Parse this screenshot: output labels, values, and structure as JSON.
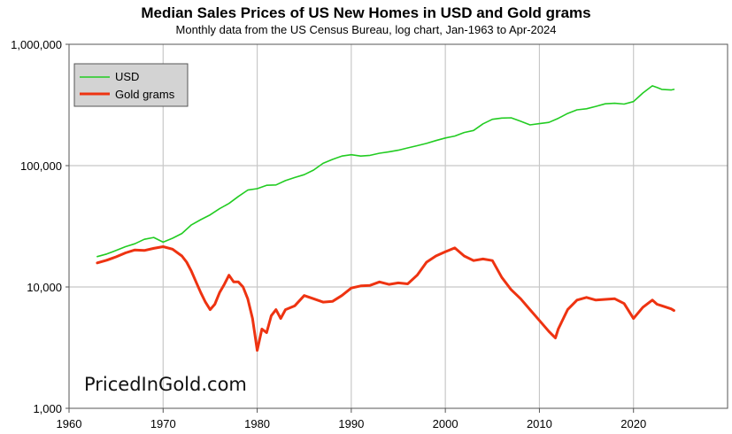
{
  "chart_data": {
    "type": "line",
    "title": "Median Sales Prices of US New Homes in USD and Gold grams",
    "subtitle": "Monthly data from the US Census Bureau, log chart, Jan-1963 to Apr-2024",
    "xlim": [
      1960,
      2030
    ],
    "ylim": [
      1000,
      1000000
    ],
    "yscale": "log",
    "grid": true,
    "legend_position": "top-left",
    "x_ticks": [
      "1960",
      "1970",
      "1980",
      "1990",
      "2000",
      "2010",
      "2020"
    ],
    "y_ticks": [
      "1,000",
      "10,000",
      "100,000",
      "1,000,000"
    ],
    "watermark": "PricedInGold.com",
    "series": [
      {
        "name": "USD",
        "color": "#22cc22",
        "x": [
          1963,
          1964,
          1965,
          1966,
          1967,
          1968,
          1969,
          1970,
          1971,
          1972,
          1973,
          1974,
          1975,
          1976,
          1977,
          1978,
          1979,
          1980,
          1981,
          1982,
          1983,
          1984,
          1985,
          1986,
          1987,
          1988,
          1989,
          1990,
          1991,
          1992,
          1993,
          1994,
          1995,
          1996,
          1997,
          1998,
          1999,
          2000,
          2001,
          2002,
          2003,
          2004,
          2005,
          2006,
          2007,
          2008,
          2009,
          2010,
          2011,
          2012,
          2013,
          2014,
          2015,
          2016,
          2017,
          2018,
          2019,
          2020,
          2021,
          2022,
          2022.5,
          2023,
          2024,
          2024.3
        ],
        "values": [
          17800,
          18700,
          20000,
          21500,
          22700,
          24700,
          25600,
          23400,
          25200,
          27600,
          32500,
          35900,
          39300,
          44200,
          48800,
          55700,
          62900,
          64600,
          68900,
          69300,
          75300,
          79900,
          84300,
          92000,
          104500,
          112500,
          120000,
          122900,
          120000,
          121500,
          126500,
          130000,
          133900,
          140000,
          146000,
          152500,
          161000,
          169000,
          175200,
          187600,
          195000,
          221000,
          240900,
          246500,
          247900,
          232100,
          216700,
          221800,
          227200,
          245200,
          268900,
          288500,
          294200,
          307800,
          323100,
          326400,
          321500,
          336900,
          397100,
          454900,
          440000,
          425000,
          420000,
          425000
        ]
      },
      {
        "name": "Gold grams",
        "color": "#ee3311",
        "x": [
          1963,
          1964,
          1965,
          1966,
          1967,
          1968,
          1969,
          1970,
          1971,
          1972,
          1972.5,
          1973,
          1973.5,
          1974,
          1974.5,
          1975,
          1975.5,
          1976,
          1976.5,
          1977,
          1977.5,
          1978,
          1978.5,
          1979,
          1979.5,
          1980,
          1980.5,
          1981,
          1981.5,
          1982,
          1982.5,
          1983,
          1984,
          1985,
          1986,
          1987,
          1988,
          1989,
          1990,
          1991,
          1992,
          1993,
          1994,
          1995,
          1996,
          1997,
          1998,
          1999,
          2000,
          2001,
          2002,
          2003,
          2004,
          2005,
          2006,
          2007,
          2008,
          2009,
          2010,
          2011,
          2011.7,
          2012,
          2013,
          2014,
          2015,
          2016,
          2017,
          2018,
          2019,
          2020,
          2021,
          2022,
          2022.5,
          2023,
          2024,
          2024.3
        ],
        "values": [
          15800,
          16600,
          17700,
          19100,
          20200,
          20000,
          20800,
          21500,
          20500,
          18000,
          16000,
          13500,
          11000,
          9000,
          7500,
          6500,
          7200,
          9000,
          10500,
          12500,
          11000,
          11000,
          10000,
          8000,
          5500,
          3000,
          4500,
          4200,
          5800,
          6500,
          5500,
          6500,
          7000,
          8500,
          8000,
          7500,
          7600,
          8500,
          9800,
          10200,
          10300,
          11000,
          10500,
          10800,
          10600,
          12500,
          16000,
          18000,
          19500,
          21000,
          18000,
          16500,
          17000,
          16500,
          12000,
          9500,
          8000,
          6500,
          5300,
          4300,
          3800,
          4500,
          6500,
          7800,
          8200,
          7800,
          7900,
          8000,
          7300,
          5500,
          6800,
          7800,
          7200,
          7000,
          6600,
          6400
        ]
      }
    ]
  }
}
